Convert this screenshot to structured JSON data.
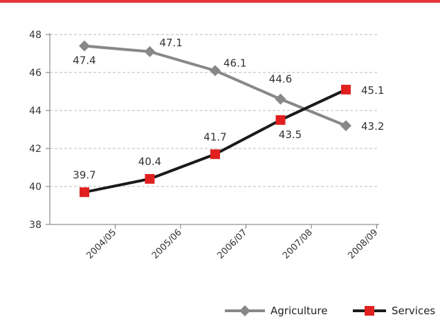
{
  "colors": {
    "top_bar": "#e5373a",
    "grid": "#b9b9b9",
    "axis": "#777777"
  },
  "chart_data": {
    "type": "line",
    "title": "",
    "xlabel": "",
    "ylabel": "",
    "categories": [
      "2004/05",
      "2005/06",
      "2006/07",
      "2007/08",
      "2008/09"
    ],
    "ylim": [
      38,
      48
    ],
    "yticks": [
      "38",
      "40",
      "42",
      "44",
      "46",
      "48"
    ],
    "grid": true,
    "legend_position": "bottom-right",
    "series": [
      {
        "name": "Agriculture",
        "values": [
          47.4,
          47.1,
          46.1,
          44.6,
          43.2
        ],
        "labels": [
          "47.4",
          "47.1",
          "46.1",
          "44.6",
          "43.2"
        ],
        "color": "#888888",
        "marker": "diamond"
      },
      {
        "name": "Services",
        "values": [
          39.7,
          40.4,
          41.7,
          43.5,
          45.1
        ],
        "labels": [
          "39.7",
          "40.4",
          "41.7",
          "43.5",
          "45.1"
        ],
        "color": "#1a1a1a",
        "marker_color": "#e0201f",
        "marker": "square"
      }
    ]
  }
}
